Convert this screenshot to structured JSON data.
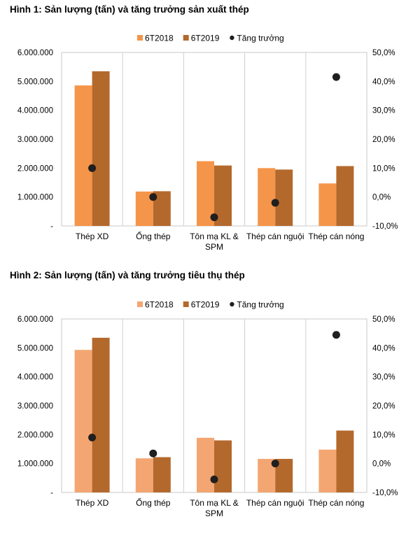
{
  "chart_data": [
    {
      "type": "bar",
      "title": "Hình 1: Sản lượng (tấn) và tăng trưởng sản xuất thép",
      "categories": [
        [
          "Thép XD"
        ],
        [
          "Ống thép"
        ],
        [
          "Tôn mạ KL &",
          "SPM"
        ],
        [
          "Thép cán nguội"
        ],
        [
          "Thép cán nóng"
        ]
      ],
      "series": [
        {
          "name": "6T2018",
          "type": "bar",
          "axis": "left",
          "color": "#F5954A",
          "values": [
            4860000,
            1190000,
            2240000,
            2000000,
            1470000
          ]
        },
        {
          "name": "6T2019",
          "type": "bar",
          "axis": "left",
          "color": "#B4692C",
          "values": [
            5350000,
            1200000,
            2090000,
            1950000,
            2070000
          ]
        },
        {
          "name": "Tăng trưởng",
          "type": "scatter",
          "axis": "right",
          "color": "#1F1F1F",
          "values": [
            0.1,
            0.0,
            -0.07,
            -0.02,
            0.415
          ]
        }
      ],
      "ylim": [
        0,
        6000000
      ],
      "y2lim": [
        -0.1,
        0.5
      ],
      "yticks": [
        "-",
        "1.000.000",
        "2.000.000",
        "3.000.000",
        "4.000.000",
        "5.000.000",
        "6.000.000"
      ],
      "y2ticks": [
        "-10,0%",
        "0,0%",
        "10,0%",
        "20,0%",
        "30,0%",
        "40,0%",
        "50,0%"
      ],
      "legend": "top",
      "grid": "vertical separators"
    },
    {
      "type": "bar",
      "title": "Hình 2: Sản lượng (tấn) và tăng trưởng tiêu thụ thép",
      "categories": [
        [
          "Thép XD"
        ],
        [
          "Ống thép"
        ],
        [
          "Tôn mạ KL &",
          "SPM"
        ],
        [
          "Thép cán nguội"
        ],
        [
          "Thép cán nóng"
        ]
      ],
      "series": [
        {
          "name": "6T2018",
          "type": "bar",
          "axis": "left",
          "color": "#F4A672",
          "values": [
            4930000,
            1180000,
            1890000,
            1160000,
            1480000
          ]
        },
        {
          "name": "6T2019",
          "type": "bar",
          "axis": "left",
          "color": "#B4692C",
          "values": [
            5350000,
            1220000,
            1800000,
            1160000,
            2140000
          ]
        },
        {
          "name": "Tăng trưởng",
          "type": "scatter",
          "axis": "right",
          "color": "#1F1F1F",
          "values": [
            0.09,
            0.035,
            -0.055,
            0.0,
            0.445
          ]
        }
      ],
      "ylim": [
        0,
        6000000
      ],
      "y2lim": [
        -0.1,
        0.5
      ],
      "yticks": [
        "-",
        "1.000.000",
        "2.000.000",
        "3.000.000",
        "4.000.000",
        "5.000.000",
        "6.000.000"
      ],
      "y2ticks": [
        "-10,0%",
        "0,0%",
        "10,0%",
        "20,0%",
        "30,0%",
        "40,0%",
        "50,0%"
      ],
      "legend": "top",
      "grid": "vertical separators"
    }
  ]
}
